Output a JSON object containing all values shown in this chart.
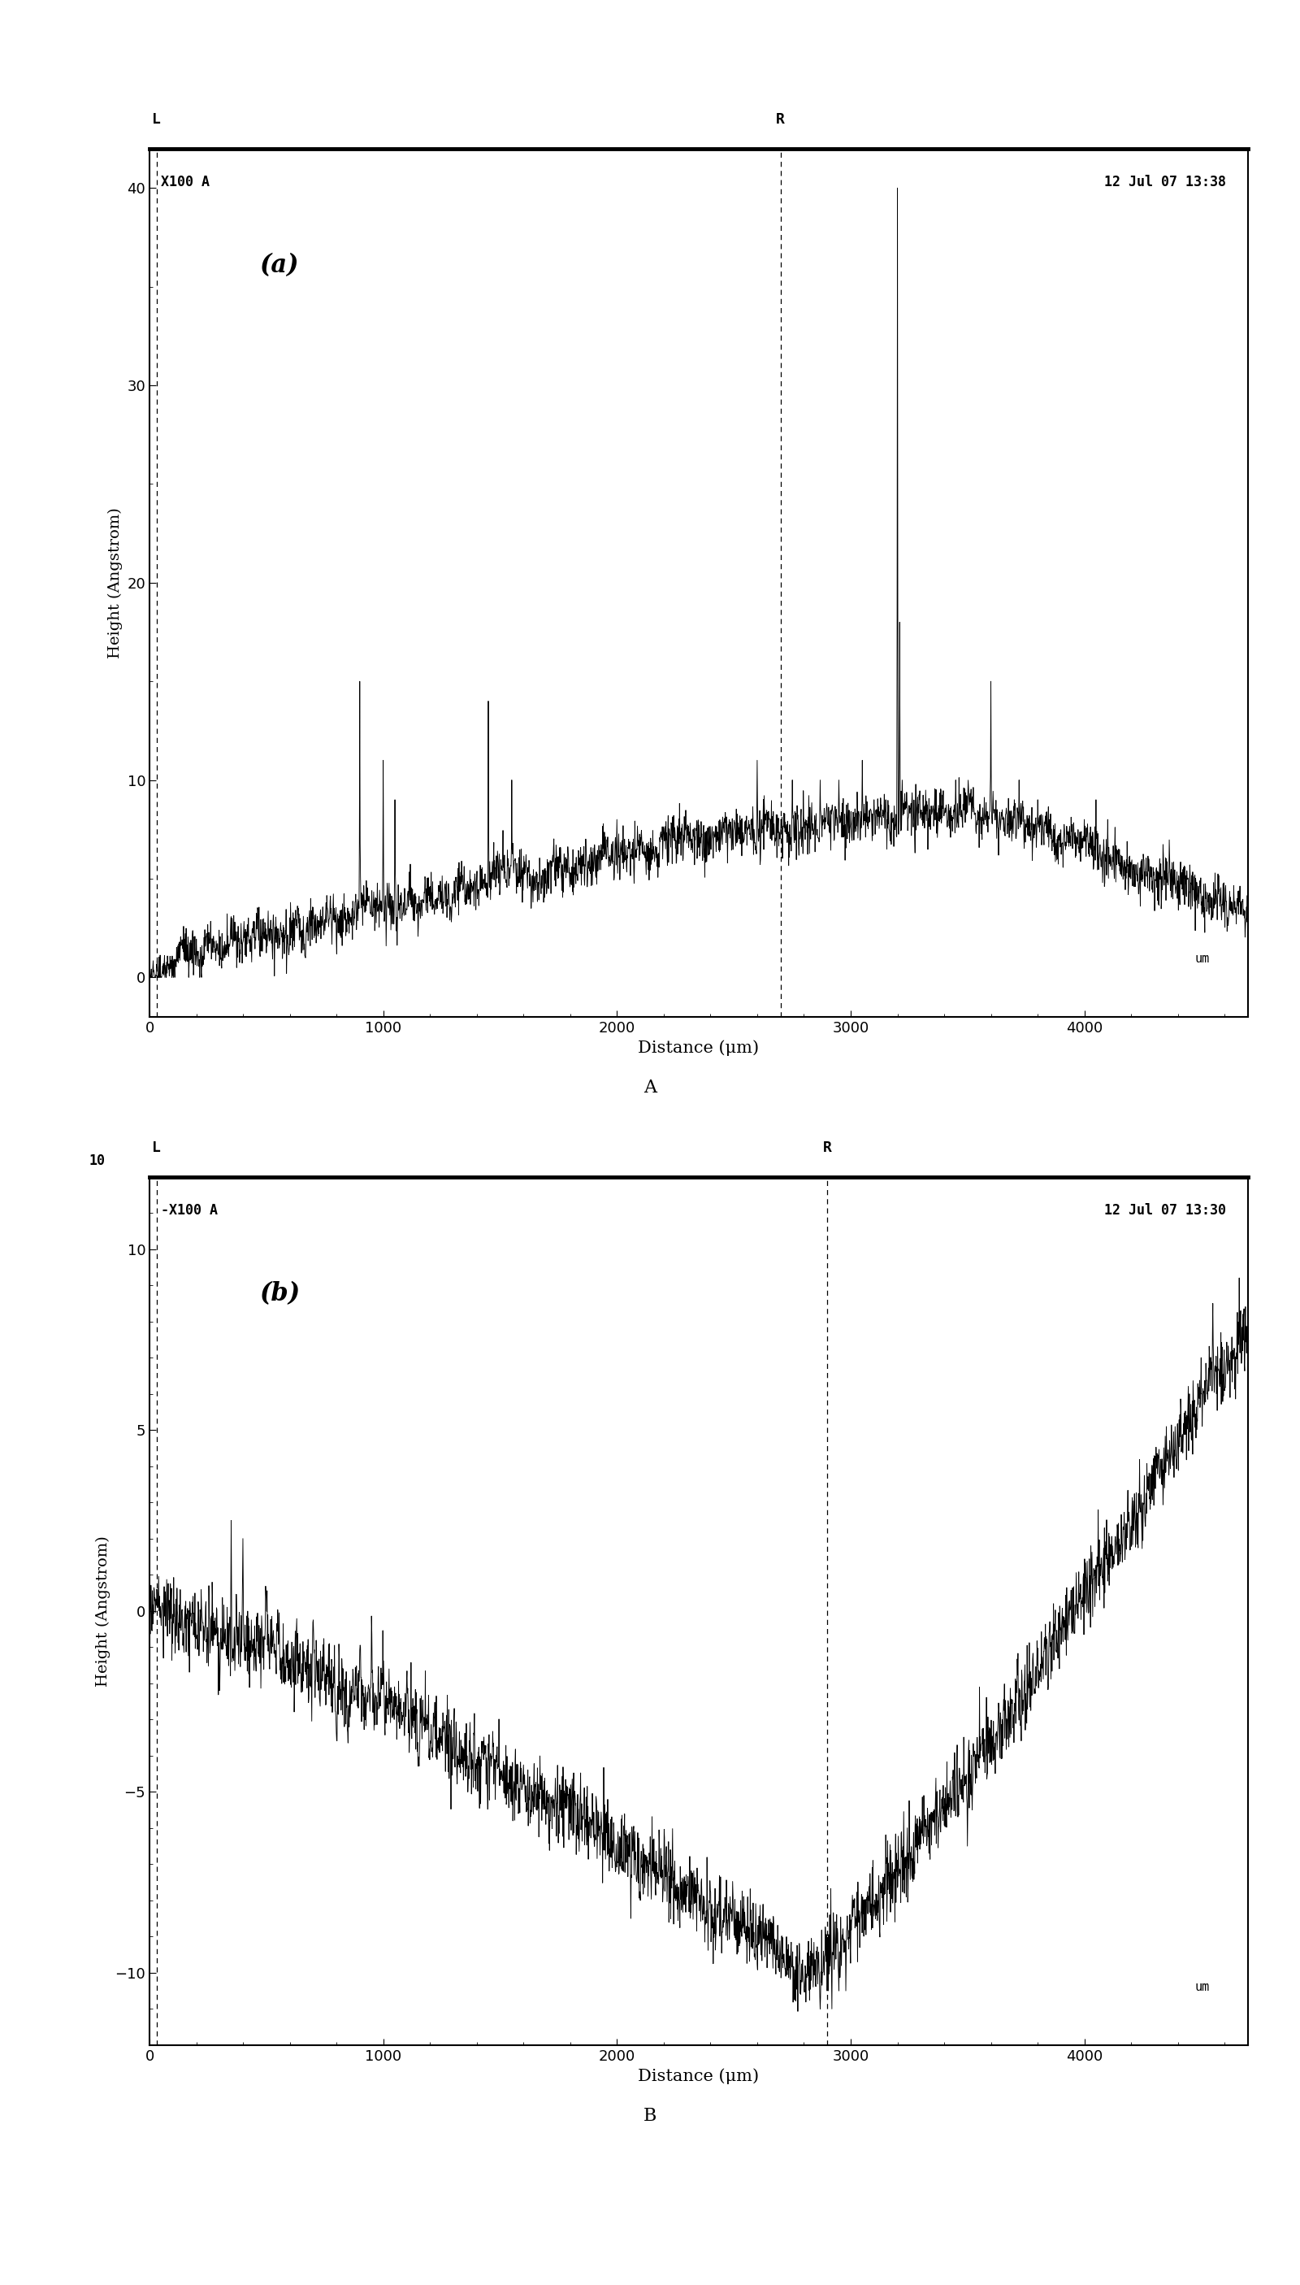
{
  "panel_a": {
    "title_text": "X100 A",
    "date_text": "12 Jul 07 13:38",
    "ylabel": "Height (Angstrom)",
    "xlabel": "Distance (μm)",
    "label": "(a)",
    "ylim": [
      -2,
      42
    ],
    "yticks": [
      0,
      10,
      20,
      30,
      40
    ],
    "xlim": [
      0,
      4700
    ],
    "xticks": [
      0,
      1000,
      2000,
      3000,
      4000
    ],
    "vline_x": 2700,
    "vline_left_x": 30
  },
  "panel_b": {
    "title_text": "X100 A",
    "date_text": "12 Jul 07 13:30",
    "ylabel": "Height (Angstrom)",
    "xlabel": "Distance (μm)",
    "label": "(b)",
    "ylim": [
      -12,
      12
    ],
    "yticks": [
      -10,
      -5,
      0,
      5,
      10
    ],
    "xlim": [
      0,
      4700
    ],
    "xticks": [
      0,
      1000,
      2000,
      3000,
      4000
    ],
    "vline_x": 2900,
    "vline_left_x": 30
  },
  "bg_color": "#ffffff",
  "line_color": "#000000"
}
